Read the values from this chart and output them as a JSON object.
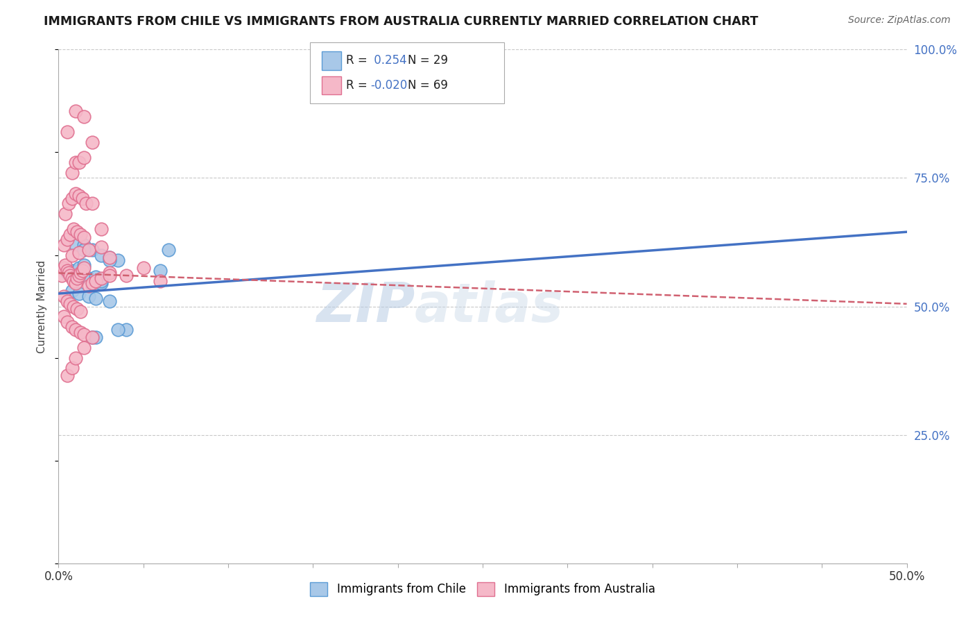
{
  "title": "IMMIGRANTS FROM CHILE VS IMMIGRANTS FROM AUSTRALIA CURRENTLY MARRIED CORRELATION CHART",
  "source": "Source: ZipAtlas.com",
  "ylabel": "Currently Married",
  "x_min": 0.0,
  "x_max": 0.5,
  "y_min": 0.0,
  "y_max": 1.0,
  "x_tick_labels_show": [
    "0.0%",
    "50.0%"
  ],
  "x_ticks_show": [
    0.0,
    0.5
  ],
  "y_ticks": [
    0.0,
    0.25,
    0.5,
    0.75,
    1.0
  ],
  "y_tick_labels": [
    "",
    "25.0%",
    "50.0%",
    "75.0%",
    "100.0%"
  ],
  "chile_color": "#a8c8e8",
  "chile_edge_color": "#5b9bd5",
  "australia_color": "#f5b8c8",
  "australia_edge_color": "#e07090",
  "trend_chile_color": "#4472c4",
  "trend_australia_color": "#d06070",
  "legend_R_chile": "0.254",
  "legend_N_chile": "29",
  "legend_R_australia": "-0.020",
  "legend_N_australia": "69",
  "watermark_zip": "ZIP",
  "watermark_atlas": "atlas",
  "background_color": "#ffffff",
  "grid_color": "#c8c8c8",
  "chile_scatter_x": [
    0.005,
    0.008,
    0.01,
    0.012,
    0.015,
    0.018,
    0.02,
    0.022,
    0.025,
    0.01,
    0.015,
    0.02,
    0.025,
    0.03,
    0.035,
    0.008,
    0.012,
    0.018,
    0.022,
    0.03,
    0.04,
    0.035,
    0.025,
    0.015,
    0.06,
    0.02,
    0.022,
    0.065,
    0.03
  ],
  "chile_scatter_y": [
    0.565,
    0.57,
    0.56,
    0.575,
    0.58,
    0.555,
    0.54,
    0.558,
    0.545,
    0.62,
    0.62,
    0.61,
    0.6,
    0.595,
    0.59,
    0.53,
    0.525,
    0.52,
    0.515,
    0.51,
    0.455,
    0.455,
    0.55,
    0.61,
    0.57,
    0.44,
    0.44,
    0.61,
    0.59
  ],
  "australia_scatter_x": [
    0.002,
    0.003,
    0.004,
    0.005,
    0.006,
    0.007,
    0.008,
    0.009,
    0.01,
    0.011,
    0.012,
    0.013,
    0.014,
    0.015,
    0.003,
    0.005,
    0.007,
    0.009,
    0.011,
    0.013,
    0.015,
    0.004,
    0.006,
    0.008,
    0.01,
    0.012,
    0.014,
    0.016,
    0.003,
    0.005,
    0.007,
    0.009,
    0.011,
    0.013,
    0.003,
    0.005,
    0.008,
    0.01,
    0.013,
    0.015,
    0.018,
    0.02,
    0.022,
    0.025,
    0.03,
    0.008,
    0.012,
    0.018,
    0.025,
    0.03,
    0.005,
    0.008,
    0.01,
    0.015,
    0.02,
    0.008,
    0.01,
    0.012,
    0.015,
    0.02,
    0.025,
    0.005,
    0.01,
    0.015,
    0.02,
    0.05,
    0.03,
    0.04,
    0.06
  ],
  "australia_scatter_y": [
    0.56,
    0.575,
    0.58,
    0.57,
    0.565,
    0.56,
    0.555,
    0.55,
    0.545,
    0.555,
    0.56,
    0.565,
    0.57,
    0.575,
    0.62,
    0.63,
    0.64,
    0.65,
    0.645,
    0.64,
    0.635,
    0.68,
    0.7,
    0.71,
    0.72,
    0.715,
    0.71,
    0.7,
    0.52,
    0.51,
    0.505,
    0.5,
    0.495,
    0.49,
    0.48,
    0.47,
    0.46,
    0.455,
    0.45,
    0.445,
    0.54,
    0.545,
    0.55,
    0.555,
    0.565,
    0.6,
    0.605,
    0.61,
    0.615,
    0.56,
    0.365,
    0.38,
    0.4,
    0.42,
    0.44,
    0.76,
    0.78,
    0.78,
    0.79,
    0.7,
    0.65,
    0.84,
    0.88,
    0.87,
    0.82,
    0.575,
    0.595,
    0.56,
    0.55
  ],
  "trend_chile_x0": 0.0,
  "trend_chile_y0": 0.525,
  "trend_chile_x1": 0.5,
  "trend_chile_y1": 0.645,
  "trend_aus_x0": 0.0,
  "trend_aus_y0": 0.565,
  "trend_aus_x1": 0.5,
  "trend_aus_y1": 0.505
}
